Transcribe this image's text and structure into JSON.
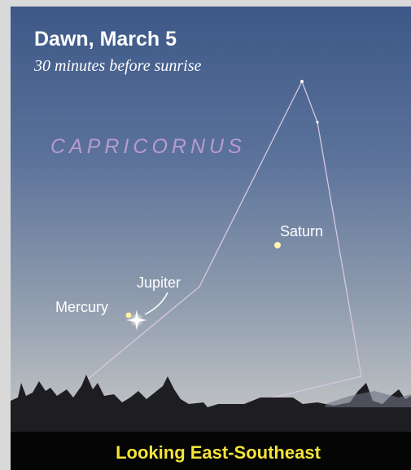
{
  "header": {
    "title": "Dawn, March 5",
    "subtitle": "30 minutes before sunrise"
  },
  "sky": {
    "constellation": "CAPRICORNUS",
    "objects": [
      {
        "label": "Saturn"
      },
      {
        "label": "Jupiter"
      },
      {
        "label": "Mercury"
      }
    ]
  },
  "footer": {
    "caption": "Looking East-Southeast"
  }
}
